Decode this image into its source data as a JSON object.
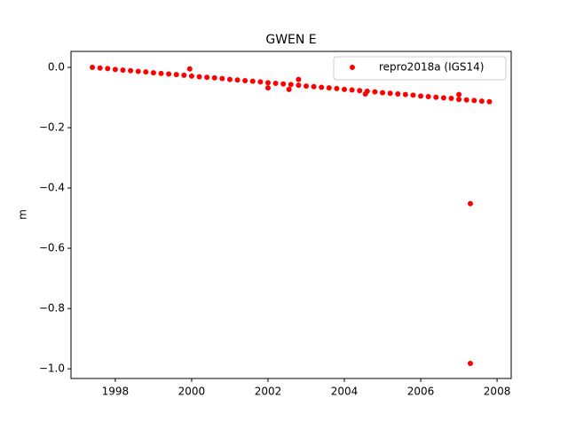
{
  "chart_data": {
    "type": "scatter",
    "title": "GWEN E",
    "ylabel": "m",
    "xlim": [
      1996.84,
      2008.37
    ],
    "ylim": [
      -1.032,
      0.053
    ],
    "xticks": [
      1998,
      2000,
      2002,
      2004,
      2006,
      2008
    ],
    "yticks": [
      {
        "value": 0.0,
        "label": "0.0"
      },
      {
        "value": -0.2,
        "label": "−0.2"
      },
      {
        "value": -0.4,
        "label": "−0.4"
      },
      {
        "value": -0.6,
        "label": "−0.6"
      },
      {
        "value": -0.8,
        "label": "−0.8"
      },
      {
        "value": -1.0,
        "label": "−1.0"
      }
    ],
    "legend": "upper right",
    "series": [
      {
        "name": "repro2018a (IGS14)",
        "color": "#ff0000",
        "x": [
          1997.4,
          1997.6,
          1997.8,
          1998.0,
          1998.2,
          1998.4,
          1998.6,
          1998.8,
          1999.0,
          1999.2,
          1999.4,
          1999.6,
          1999.8,
          2000.0,
          2000.2,
          2000.4,
          2000.6,
          2000.8,
          2001.0,
          2001.2,
          2001.4,
          2001.6,
          2001.8,
          2002.0,
          2002.2,
          2002.4,
          2002.6,
          2002.8,
          2003.0,
          2003.2,
          2003.4,
          2003.6,
          2003.8,
          2004.0,
          2004.2,
          2004.4,
          2004.6,
          2004.8,
          2005.0,
          2005.2,
          2005.4,
          2005.6,
          2005.8,
          2006.0,
          2006.2,
          2006.4,
          2006.6,
          2006.8,
          2007.0,
          2007.2,
          2007.4,
          2007.6,
          2007.8,
          1999.95,
          2002.0,
          2002.55,
          2002.8,
          2004.55,
          2007.0,
          2007.3,
          2007.3
        ],
        "values": [
          0.0,
          -0.002,
          -0.004,
          -0.007,
          -0.009,
          -0.011,
          -0.013,
          -0.015,
          -0.018,
          -0.02,
          -0.022,
          -0.024,
          -0.026,
          -0.029,
          -0.031,
          -0.033,
          -0.035,
          -0.037,
          -0.04,
          -0.042,
          -0.044,
          -0.046,
          -0.048,
          -0.051,
          -0.053,
          -0.055,
          -0.057,
          -0.059,
          -0.062,
          -0.064,
          -0.066,
          -0.068,
          -0.07,
          -0.073,
          -0.075,
          -0.077,
          -0.079,
          -0.081,
          -0.084,
          -0.086,
          -0.088,
          -0.09,
          -0.092,
          -0.095,
          -0.097,
          -0.099,
          -0.101,
          -0.103,
          -0.106,
          -0.108,
          -0.11,
          -0.112,
          -0.114,
          -0.005,
          -0.068,
          -0.073,
          -0.04,
          -0.088,
          -0.09,
          -0.452,
          -0.982
        ]
      }
    ]
  }
}
